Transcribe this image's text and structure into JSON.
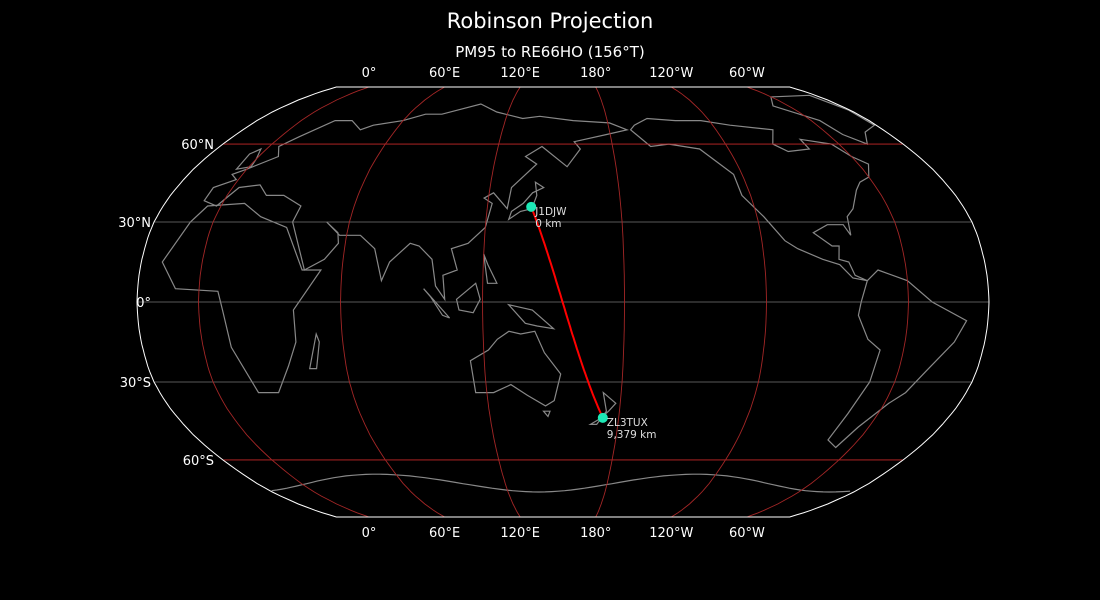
{
  "title": "Robinson Projection",
  "subtitle": "PM95 to RE66HO (156°T)",
  "map": {
    "projection": "Robinson",
    "central_longitude": 154,
    "background": "#000000",
    "coastline_color": "#888888",
    "graticule_color": "#b22222",
    "path_color": "#ff0000",
    "marker_color": "#1de9b6",
    "meridian_labels": [
      {
        "lon": 0,
        "label": "0°"
      },
      {
        "lon": 60,
        "label": "60°E"
      },
      {
        "lon": 120,
        "label": "120°E"
      },
      {
        "lon": 180,
        "label": "180°"
      },
      {
        "lon": -120,
        "label": "120°W"
      },
      {
        "lon": -60,
        "label": "60°W"
      }
    ],
    "parallel_labels": [
      {
        "lat": 60,
        "label": "60°N"
      },
      {
        "lat": 30,
        "label": "30°N"
      },
      {
        "lat": 0,
        "label": "0°"
      },
      {
        "lat": -30,
        "label": "30°S"
      },
      {
        "lat": -60,
        "label": "60°S"
      }
    ],
    "stations": [
      {
        "call": "J1DJW",
        "distance": "0 km",
        "lat": 35.7,
        "lon": 139.7
      },
      {
        "call": "ZL3TUX",
        "distance": "9,379 km",
        "lat": -43.5,
        "lon": 172.6
      }
    ]
  }
}
